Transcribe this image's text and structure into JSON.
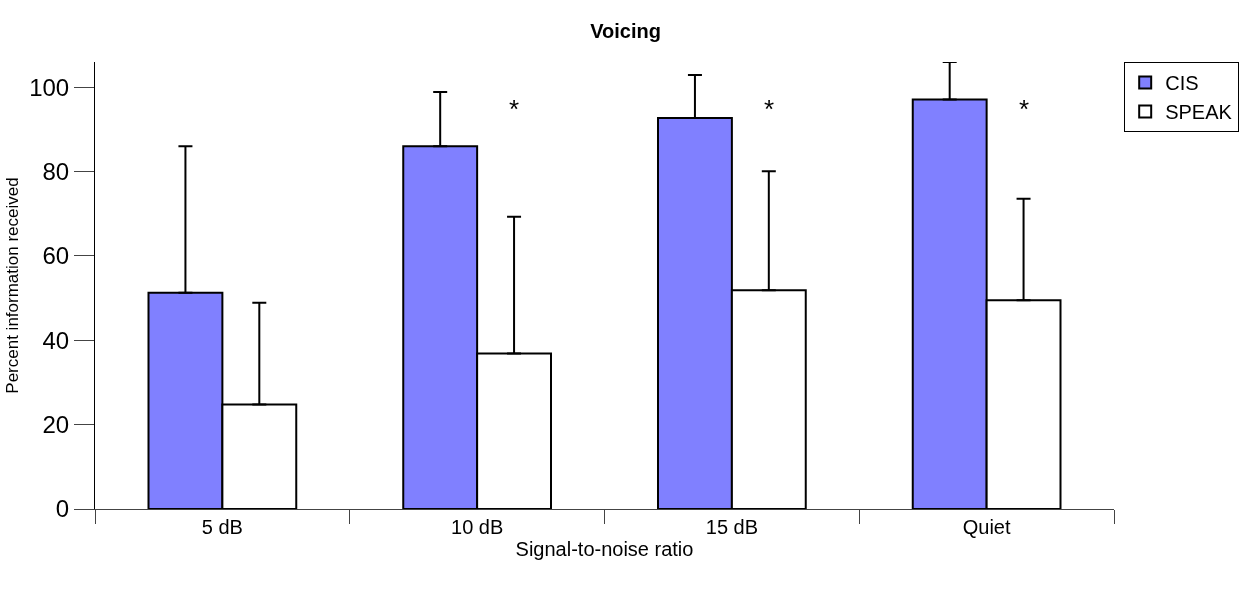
{
  "chart_data": {
    "type": "bar",
    "title": "Voicing",
    "xlabel": "Signal-to-noise ratio",
    "ylabel": "Percent information received",
    "categories": [
      "5 dB",
      "10 dB",
      "15 dB",
      "Quiet"
    ],
    "series": [
      {
        "name": "CIS",
        "color": "#8080ff",
        "values": [
          51.3,
          86.0,
          92.7,
          97.1
        ],
        "errors": [
          [
            51.3,
            86.0
          ],
          [
            86.0,
            98.9
          ],
          [
            92.7,
            102.9
          ],
          [
            97.1,
            106.0
          ]
        ]
      },
      {
        "name": "SPEAK",
        "color": "#ffffff",
        "values": [
          24.8,
          36.9,
          51.9,
          49.5
        ],
        "errors": [
          [
            24.8,
            48.9
          ],
          [
            36.9,
            69.3
          ],
          [
            51.9,
            80.1
          ],
          [
            49.5,
            73.6
          ]
        ]
      }
    ],
    "annotations": [
      "*",
      "*",
      "*"
    ],
    "ylim": [
      0,
      106
    ],
    "yticks": [
      0,
      20,
      40,
      60,
      80,
      100
    ],
    "grid": false,
    "legend": "top right"
  }
}
